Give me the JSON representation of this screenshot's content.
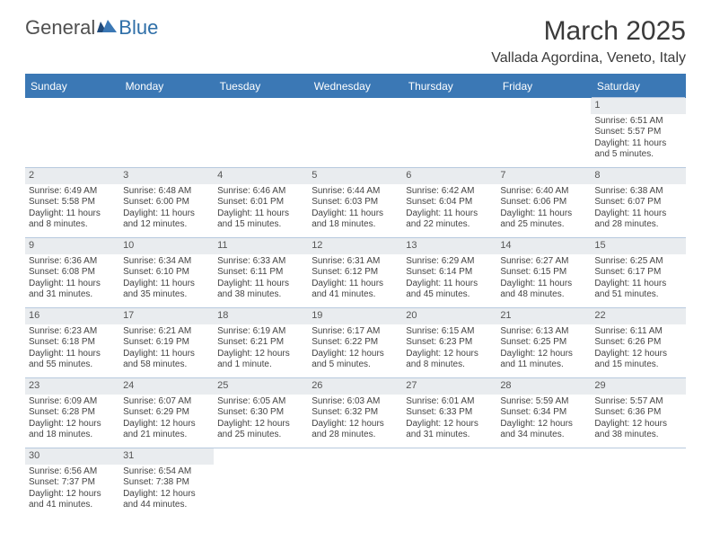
{
  "logo": {
    "general": "General",
    "blue": "Blue"
  },
  "title": "March 2025",
  "location": "Vallada Agordina, Veneto, Italy",
  "colors": {
    "header_bg": "#3b78b5",
    "header_text": "#ffffff",
    "border": "#b7c9de",
    "daynum_bg": "#e9ecef",
    "text": "#444444",
    "logo_blue": "#2f6fa8"
  },
  "weekdays": [
    "Sunday",
    "Monday",
    "Tuesday",
    "Wednesday",
    "Thursday",
    "Friday",
    "Saturday"
  ],
  "weeks": [
    [
      null,
      null,
      null,
      null,
      null,
      null,
      {
        "n": "1",
        "sr": "Sunrise: 6:51 AM",
        "ss": "Sunset: 5:57 PM",
        "dl": "Daylight: 11 hours and 5 minutes."
      }
    ],
    [
      {
        "n": "2",
        "sr": "Sunrise: 6:49 AM",
        "ss": "Sunset: 5:58 PM",
        "dl": "Daylight: 11 hours and 8 minutes."
      },
      {
        "n": "3",
        "sr": "Sunrise: 6:48 AM",
        "ss": "Sunset: 6:00 PM",
        "dl": "Daylight: 11 hours and 12 minutes."
      },
      {
        "n": "4",
        "sr": "Sunrise: 6:46 AM",
        "ss": "Sunset: 6:01 PM",
        "dl": "Daylight: 11 hours and 15 minutes."
      },
      {
        "n": "5",
        "sr": "Sunrise: 6:44 AM",
        "ss": "Sunset: 6:03 PM",
        "dl": "Daylight: 11 hours and 18 minutes."
      },
      {
        "n": "6",
        "sr": "Sunrise: 6:42 AM",
        "ss": "Sunset: 6:04 PM",
        "dl": "Daylight: 11 hours and 22 minutes."
      },
      {
        "n": "7",
        "sr": "Sunrise: 6:40 AM",
        "ss": "Sunset: 6:06 PM",
        "dl": "Daylight: 11 hours and 25 minutes."
      },
      {
        "n": "8",
        "sr": "Sunrise: 6:38 AM",
        "ss": "Sunset: 6:07 PM",
        "dl": "Daylight: 11 hours and 28 minutes."
      }
    ],
    [
      {
        "n": "9",
        "sr": "Sunrise: 6:36 AM",
        "ss": "Sunset: 6:08 PM",
        "dl": "Daylight: 11 hours and 31 minutes."
      },
      {
        "n": "10",
        "sr": "Sunrise: 6:34 AM",
        "ss": "Sunset: 6:10 PM",
        "dl": "Daylight: 11 hours and 35 minutes."
      },
      {
        "n": "11",
        "sr": "Sunrise: 6:33 AM",
        "ss": "Sunset: 6:11 PM",
        "dl": "Daylight: 11 hours and 38 minutes."
      },
      {
        "n": "12",
        "sr": "Sunrise: 6:31 AM",
        "ss": "Sunset: 6:12 PM",
        "dl": "Daylight: 11 hours and 41 minutes."
      },
      {
        "n": "13",
        "sr": "Sunrise: 6:29 AM",
        "ss": "Sunset: 6:14 PM",
        "dl": "Daylight: 11 hours and 45 minutes."
      },
      {
        "n": "14",
        "sr": "Sunrise: 6:27 AM",
        "ss": "Sunset: 6:15 PM",
        "dl": "Daylight: 11 hours and 48 minutes."
      },
      {
        "n": "15",
        "sr": "Sunrise: 6:25 AM",
        "ss": "Sunset: 6:17 PM",
        "dl": "Daylight: 11 hours and 51 minutes."
      }
    ],
    [
      {
        "n": "16",
        "sr": "Sunrise: 6:23 AM",
        "ss": "Sunset: 6:18 PM",
        "dl": "Daylight: 11 hours and 55 minutes."
      },
      {
        "n": "17",
        "sr": "Sunrise: 6:21 AM",
        "ss": "Sunset: 6:19 PM",
        "dl": "Daylight: 11 hours and 58 minutes."
      },
      {
        "n": "18",
        "sr": "Sunrise: 6:19 AM",
        "ss": "Sunset: 6:21 PM",
        "dl": "Daylight: 12 hours and 1 minute."
      },
      {
        "n": "19",
        "sr": "Sunrise: 6:17 AM",
        "ss": "Sunset: 6:22 PM",
        "dl": "Daylight: 12 hours and 5 minutes."
      },
      {
        "n": "20",
        "sr": "Sunrise: 6:15 AM",
        "ss": "Sunset: 6:23 PM",
        "dl": "Daylight: 12 hours and 8 minutes."
      },
      {
        "n": "21",
        "sr": "Sunrise: 6:13 AM",
        "ss": "Sunset: 6:25 PM",
        "dl": "Daylight: 12 hours and 11 minutes."
      },
      {
        "n": "22",
        "sr": "Sunrise: 6:11 AM",
        "ss": "Sunset: 6:26 PM",
        "dl": "Daylight: 12 hours and 15 minutes."
      }
    ],
    [
      {
        "n": "23",
        "sr": "Sunrise: 6:09 AM",
        "ss": "Sunset: 6:28 PM",
        "dl": "Daylight: 12 hours and 18 minutes."
      },
      {
        "n": "24",
        "sr": "Sunrise: 6:07 AM",
        "ss": "Sunset: 6:29 PM",
        "dl": "Daylight: 12 hours and 21 minutes."
      },
      {
        "n": "25",
        "sr": "Sunrise: 6:05 AM",
        "ss": "Sunset: 6:30 PM",
        "dl": "Daylight: 12 hours and 25 minutes."
      },
      {
        "n": "26",
        "sr": "Sunrise: 6:03 AM",
        "ss": "Sunset: 6:32 PM",
        "dl": "Daylight: 12 hours and 28 minutes."
      },
      {
        "n": "27",
        "sr": "Sunrise: 6:01 AM",
        "ss": "Sunset: 6:33 PM",
        "dl": "Daylight: 12 hours and 31 minutes."
      },
      {
        "n": "28",
        "sr": "Sunrise: 5:59 AM",
        "ss": "Sunset: 6:34 PM",
        "dl": "Daylight: 12 hours and 34 minutes."
      },
      {
        "n": "29",
        "sr": "Sunrise: 5:57 AM",
        "ss": "Sunset: 6:36 PM",
        "dl": "Daylight: 12 hours and 38 minutes."
      }
    ],
    [
      {
        "n": "30",
        "sr": "Sunrise: 6:56 AM",
        "ss": "Sunset: 7:37 PM",
        "dl": "Daylight: 12 hours and 41 minutes."
      },
      {
        "n": "31",
        "sr": "Sunrise: 6:54 AM",
        "ss": "Sunset: 7:38 PM",
        "dl": "Daylight: 12 hours and 44 minutes."
      },
      null,
      null,
      null,
      null,
      null
    ]
  ]
}
